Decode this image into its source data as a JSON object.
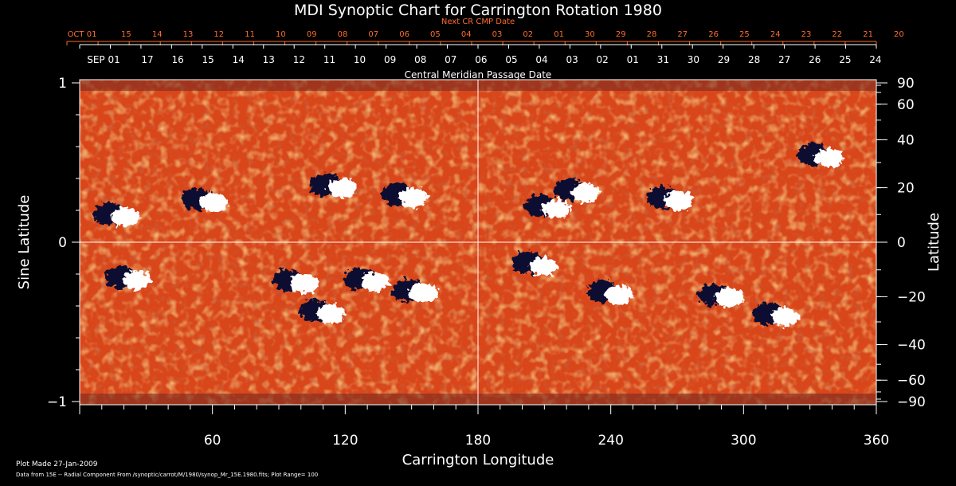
{
  "title": "MDI Synoptic Chart for Carrington Rotation 1980",
  "next_cr_label": "Next CR CMP Date",
  "cmp_label": "Central Meridian Passage Date",
  "footer": {
    "plot_made": "Plot Made 27-Jan-2009",
    "data_line": "Data from 15E -- Radial Component From /synoptic/carrot/M/1980/synop_Mr_15E.1980.fits; Plot Range= 100"
  },
  "colors": {
    "background": "#000000",
    "text": "#ffffff",
    "next_cr_axis": "#ff6a2a",
    "map_base": "#d8461a",
    "map_light": "#ff8a28",
    "positive_polarity": "#ffffff",
    "negative_polarity": "#0c0c30"
  },
  "chart_data": {
    "type": "heatmap",
    "title": "MDI Synoptic Chart for Carrington Rotation 1980",
    "xlabel": "Carrington Longitude",
    "ylabel_left": "Sine Latitude",
    "ylabel_right": "Latitude",
    "xlim": [
      0,
      360
    ],
    "ylim": [
      -1,
      1
    ],
    "x_ticks": [
      "60",
      "120",
      "180",
      "240",
      "300",
      "360"
    ],
    "y_ticks_left": [
      {
        "value": 1,
        "label": "1"
      },
      {
        "value": 0,
        "label": "0"
      },
      {
        "value": -1,
        "label": "−1"
      }
    ],
    "y_ticks_right": [
      {
        "deg": 90,
        "label": "90"
      },
      {
        "deg": 60,
        "label": "60"
      },
      {
        "deg": 40,
        "label": "40"
      },
      {
        "deg": 20,
        "label": "20"
      },
      {
        "deg": 0,
        "label": "0"
      },
      {
        "deg": -20,
        "label": "−20"
      },
      {
        "deg": -40,
        "label": "−40"
      },
      {
        "deg": -60,
        "label": "−60"
      },
      {
        "deg": -90,
        "label": "−90"
      }
    ],
    "next_cr_dates": [
      "OCT 01",
      "15",
      "14",
      "13",
      "12",
      "11",
      "10",
      "09",
      "08",
      "07",
      "06",
      "05",
      "04",
      "03",
      "02",
      "01",
      "30",
      "29",
      "28",
      "27",
      "26",
      "25",
      "24",
      "23",
      "22",
      "21",
      "20"
    ],
    "cmp_dates": [
      "SEP 01",
      "17",
      "16",
      "15",
      "14",
      "13",
      "12",
      "11",
      "10",
      "09",
      "08",
      "07",
      "06",
      "05",
      "04",
      "03",
      "02",
      "01",
      "31",
      "30",
      "29",
      "28",
      "27",
      "26",
      "25",
      "24"
    ],
    "plot_range": 100,
    "grid": "crosshair at longitude 180 and sine latitude 0",
    "active_regions": [
      {
        "lon": 17,
        "sinlat": 0.18,
        "polarity": "mixed"
      },
      {
        "lon": 57,
        "sinlat": 0.27,
        "polarity": "mixed"
      },
      {
        "lon": 115,
        "sinlat": 0.36,
        "polarity": "mixed"
      },
      {
        "lon": 147,
        "sinlat": 0.3,
        "polarity": "mixed"
      },
      {
        "lon": 212,
        "sinlat": 0.23,
        "polarity": "mixed"
      },
      {
        "lon": 225,
        "sinlat": 0.33,
        "polarity": "mixed"
      },
      {
        "lon": 267,
        "sinlat": 0.28,
        "polarity": "mixed"
      },
      {
        "lon": 335,
        "sinlat": 0.55,
        "polarity": "mixed"
      },
      {
        "lon": 22,
        "sinlat": -0.22,
        "polarity": "mixed"
      },
      {
        "lon": 98,
        "sinlat": -0.24,
        "polarity": "mixed"
      },
      {
        "lon": 110,
        "sinlat": -0.43,
        "polarity": "mixed"
      },
      {
        "lon": 130,
        "sinlat": -0.23,
        "polarity": "mixed"
      },
      {
        "lon": 152,
        "sinlat": -0.3,
        "polarity": "mixed"
      },
      {
        "lon": 206,
        "sinlat": -0.13,
        "polarity": "mixed"
      },
      {
        "lon": 240,
        "sinlat": -0.31,
        "polarity": "mixed"
      },
      {
        "lon": 290,
        "sinlat": -0.33,
        "polarity": "mixed"
      },
      {
        "lon": 315,
        "sinlat": -0.45,
        "polarity": "mixed"
      }
    ]
  }
}
